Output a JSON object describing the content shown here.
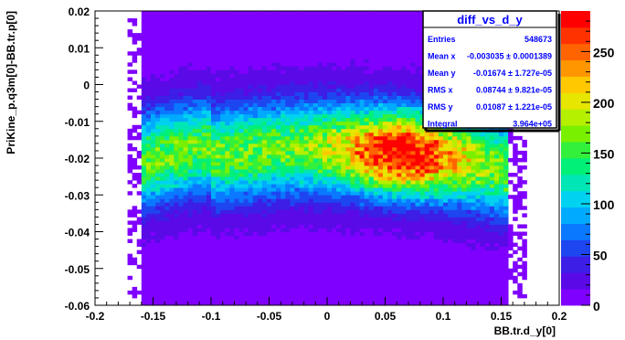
{
  "chart_data": {
    "type": "heatmap",
    "xlabel": "BB.tr.d_y[0]",
    "ylabel": "PriKine_p.q3m[0]-BB.tr.p[0]",
    "xlim": [
      -0.2,
      0.2
    ],
    "ylim": [
      -0.06,
      0.02
    ],
    "zlim": [
      0,
      290
    ],
    "x_ticks": [
      "-0.2",
      "-0.15",
      "-0.1",
      "-0.05",
      "0",
      "0.05",
      "0.1",
      "0.15",
      "0.2"
    ],
    "x_tick_values": [
      -0.2,
      -0.15,
      -0.1,
      -0.05,
      0,
      0.05,
      0.1,
      0.15,
      0.2
    ],
    "y_ticks": [
      "0.02",
      "0.01",
      "0",
      "-0.01",
      "-0.02",
      "-0.03",
      "-0.04",
      "-0.05",
      "-0.06"
    ],
    "y_tick_values": [
      0.02,
      0.01,
      0,
      -0.01,
      -0.02,
      -0.03,
      -0.04,
      -0.05,
      -0.06
    ],
    "z_ticks": [
      "250",
      "200",
      "150",
      "100",
      "50",
      "0"
    ],
    "z_tick_values": [
      250,
      200,
      150,
      100,
      50,
      0
    ],
    "data_region": {
      "x_range": [
        -0.16,
        0.155
      ],
      "band_center_y": -0.017,
      "peak": {
        "x": 0.065,
        "y": -0.019,
        "z": 290
      }
    },
    "colorscale": [
      "#7f00ff",
      "#5a0ae6",
      "#3c1ee6",
      "#1e46f0",
      "#0a78ff",
      "#00aaff",
      "#00d2f0",
      "#00e6b4",
      "#00f078",
      "#32f03c",
      "#78f000",
      "#b4f000",
      "#e6e600",
      "#ffc800",
      "#ff9600",
      "#ff6400",
      "#ff3200",
      "#ff0000"
    ],
    "stats": {
      "title": "diff_vs_d_y",
      "rows": [
        {
          "label": "Entries",
          "value": "548673"
        },
        {
          "label": "Mean x",
          "value": "-0.003035 ± 0.0001389"
        },
        {
          "label": "Mean y",
          "value": "-0.01674 ± 1.727e-05"
        },
        {
          "label": "RMS x",
          "value": "0.08744 ± 9.821e-05"
        },
        {
          "label": "RMS y",
          "value": "0.01087 ± 1.221e-05"
        },
        {
          "label": "Integral",
          "value": "3.964e+05"
        }
      ]
    }
  }
}
